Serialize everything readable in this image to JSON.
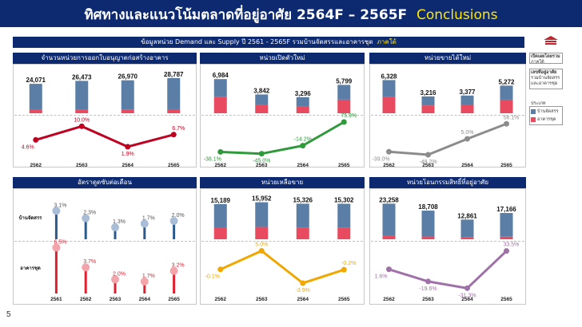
{
  "title": "ทิศทางและแนวโน้มตลาดที่อยู่อาศัย 2564F – 2565F",
  "title_accent": "Conclusions",
  "subtitle": "ข้อมูลหน่วย Demand และ Supply ปี 2561 - 2565F รวมบ้านจัดสรรและอาคารชุด",
  "subtitle_accent": "ภาคใต้",
  "page_number": "5",
  "side_legend": {
    "region_label": "เปิดเผยโดยรวม",
    "region_value": "ภาคใต้",
    "hdr2": "เลขที่อยู่อาศัย",
    "hdr2_sub": "รวมบ้านจัดสรรและอาคารชุด",
    "type_label": "ประเภท",
    "items": [
      "บ้านจัดสรร",
      "อาคารชุด"
    ]
  },
  "colors": {
    "navy": "#0d2a70",
    "house": "#5b7ea6",
    "condo": "#e84a5f",
    "red_line": "#c00020",
    "green_line": "#2e9a3a",
    "gray_line": "#8c8c8c",
    "orange_line": "#f0a800",
    "purple_line": "#a070a8"
  },
  "chart_data": [
    {
      "type": "bar",
      "title": "จำนวนหน่วยการออกใบอนุญาตก่อสร้างอาคาร",
      "categories": [
        "2562",
        "2563",
        "2564",
        "2565"
      ],
      "totals": [
        "24,071",
        "26,473",
        "26,970",
        "28,787"
      ],
      "series": [
        {
          "name": "บ้านจัดสรร",
          "values": [
            21200,
            23300,
            23900,
            25500
          ]
        },
        {
          "name": "อาคารชุด",
          "values": [
            2871,
            3173,
            3070,
            3287
          ]
        }
      ],
      "ylim": [
        0,
        30000
      ],
      "line": {
        "values": [
          4.6,
          10.0,
          1.9,
          6.7
        ],
        "labels": [
          "4.6%",
          "10.0%",
          "1.9%",
          "6.7%"
        ],
        "color": "#c00020",
        "ylim": [
          0,
          12
        ]
      }
    },
    {
      "type": "bar",
      "title": "หน่วยเปิดตัวใหม่",
      "categories": [
        "2562",
        "2563",
        "2564",
        "2565"
      ],
      "totals": [
        "6,984",
        "3,842",
        "3,296",
        "5,799"
      ],
      "series": [
        {
          "name": "บ้านจัดสรร",
          "values": [
            3684,
            2142,
            1896,
            2999
          ]
        },
        {
          "name": "อาคารชุด",
          "values": [
            3300,
            1700,
            1400,
            2800
          ]
        }
      ],
      "ylim": [
        0,
        7500
      ],
      "line": {
        "values": [
          -38.1,
          -45.0,
          -14.2,
          75.9
        ],
        "labels": [
          "-38.1%",
          "-45.0%",
          "-14.2%",
          "75.9%"
        ],
        "color": "#2e9a3a",
        "ylim": [
          -55,
          85
        ]
      }
    },
    {
      "type": "bar",
      "title": "หน่วยขายได้ใหม่",
      "categories": [
        "2562",
        "2563",
        "2564",
        "2565"
      ],
      "totals": [
        "6,328",
        "3,216",
        "3,377",
        "5,272"
      ],
      "series": [
        {
          "name": "บ้านจัดสรร",
          "values": [
            3228,
            1716,
            1777,
            2672
          ]
        },
        {
          "name": "อาคารชุด",
          "values": [
            3100,
            1500,
            1600,
            2600
          ]
        }
      ],
      "ylim": [
        0,
        7000
      ],
      "line": {
        "values": [
          -39.0,
          -49.2,
          5.0,
          56.1
        ],
        "labels": [
          "-39.0%",
          "-49.2%",
          "5.0%",
          "56.1%"
        ],
        "color": "#8c8c8c",
        "ylim": [
          -60,
          65
        ]
      }
    },
    {
      "type": "lollipop",
      "title": "อัตราดูดซับต่อเดือน",
      "categories": [
        "2561",
        "2562",
        "2563",
        "2564",
        "2565"
      ],
      "rows": [
        {
          "name": "บ้านจัดสรร",
          "values": [
            3.1,
            2.3,
            1.3,
            1.7,
            2.0
          ],
          "labels": [
            "3.1%",
            "2.3%",
            "1.3%",
            "1.7%",
            "2.0%"
          ],
          "color": "#2c5a8c",
          "dot": "#a9bdd6"
        },
        {
          "name": "อาคารชุด",
          "values": [
            6.5,
            3.7,
            2.0,
            1.7,
            3.2
          ],
          "labels": [
            "6.5%",
            "3.7%",
            "2.0%",
            "1.7%",
            "3.2%"
          ],
          "color": "#e02030",
          "dot": "#f3a4ab"
        }
      ]
    },
    {
      "type": "bar",
      "title": "หน่วยเหลือขาย",
      "categories": [
        "2562",
        "2563",
        "2564",
        "2565"
      ],
      "totals": [
        "15,189",
        "15,952",
        "15,326",
        "15,302"
      ],
      "series": [
        {
          "name": "บ้านจัดสรร",
          "values": [
            10189,
            10652,
            10226,
            10202
          ]
        },
        {
          "name": "อาคารชุด",
          "values": [
            5000,
            5300,
            5100,
            5100
          ]
        }
      ],
      "ylim": [
        0,
        16500
      ],
      "line": {
        "values": [
          -0.1,
          5.0,
          -3.9,
          -0.2
        ],
        "labels": [
          "-0.1%",
          "5.0%",
          "-3.9%",
          "-0.2%"
        ],
        "color": "#f0a800",
        "ylim": [
          -5,
          6
        ]
      }
    },
    {
      "type": "bar",
      "title": "หน่วยโอนกรรมสิทธิ์ที่อยู่อาศัย",
      "categories": [
        "2562",
        "2563",
        "2564",
        "2565"
      ],
      "totals": [
        "23,258",
        "18,708",
        "12,861",
        "17,166"
      ],
      "series": [
        {
          "name": "บ้านจัดสรร",
          "values": [
            20958,
            16908,
            11461,
            15466
          ]
        },
        {
          "name": "อาคารชุด",
          "values": [
            2300,
            1800,
            1400,
            1700
          ]
        }
      ],
      "ylim": [
        0,
        25000
      ],
      "line": {
        "values": [
          1.6,
          -19.6,
          -31.3,
          33.5
        ],
        "labels": [
          "1.6%",
          "-19.6%",
          "-31.3%",
          "33.5%"
        ],
        "color": "#a070a8",
        "ylim": [
          -35,
          40
        ]
      }
    }
  ]
}
